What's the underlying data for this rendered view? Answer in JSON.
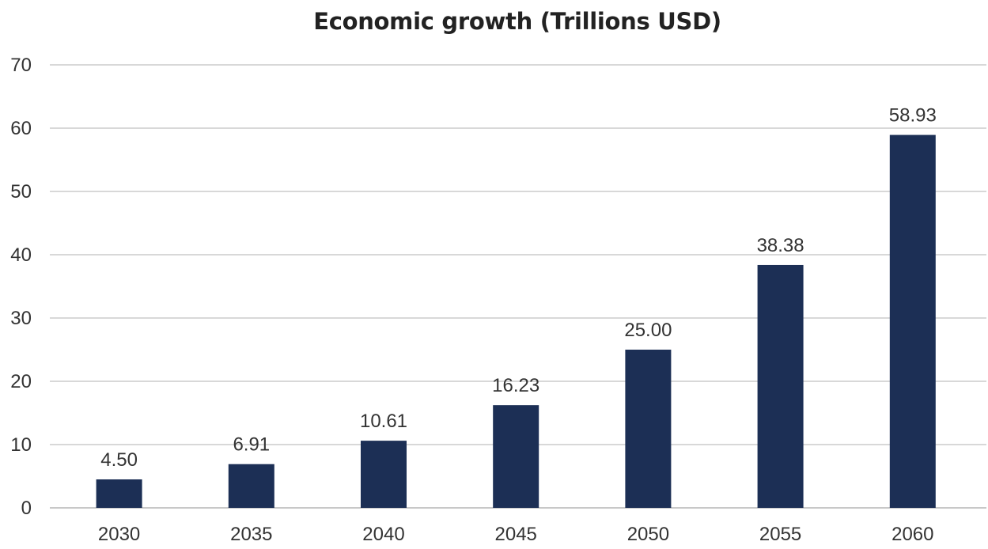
{
  "chart_data": {
    "type": "bar",
    "title": "Economic growth (Trillions USD)",
    "xlabel": "",
    "ylabel": "",
    "categories": [
      "2030",
      "2035",
      "2040",
      "2045",
      "2050",
      "2055",
      "2060"
    ],
    "values": [
      4.5,
      6.91,
      10.61,
      16.23,
      25.0,
      38.38,
      58.93
    ],
    "data_labels": [
      "4.50",
      "6.91",
      "10.61",
      "16.23",
      "25.00",
      "38.38",
      "58.93"
    ],
    "ylim": [
      0,
      70
    ],
    "yticks": [
      0,
      10,
      20,
      30,
      40,
      50,
      60,
      70
    ],
    "grid": true,
    "legend": "none",
    "colors": {
      "bar": "#1c2f55",
      "grid": "#cccccc",
      "text": "#333333"
    }
  }
}
